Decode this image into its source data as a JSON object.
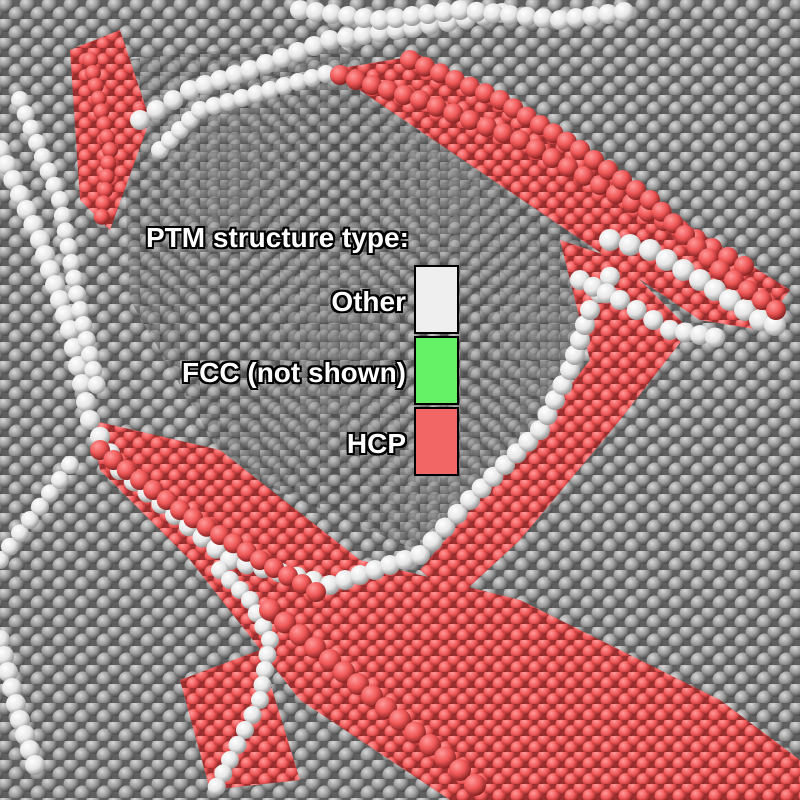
{
  "legend": {
    "title": "PTM structure type:",
    "entries": [
      {
        "label": "Other",
        "color": "#efefef"
      },
      {
        "label": "FCC (not shown)",
        "color": "#66f266"
      },
      {
        "label": "HCP",
        "color": "#f26666"
      }
    ]
  },
  "colors": {
    "background_atoms": "#9a9a9a",
    "other_atoms": "#f0f0f0",
    "hcp_atoms": "#ef5656"
  }
}
